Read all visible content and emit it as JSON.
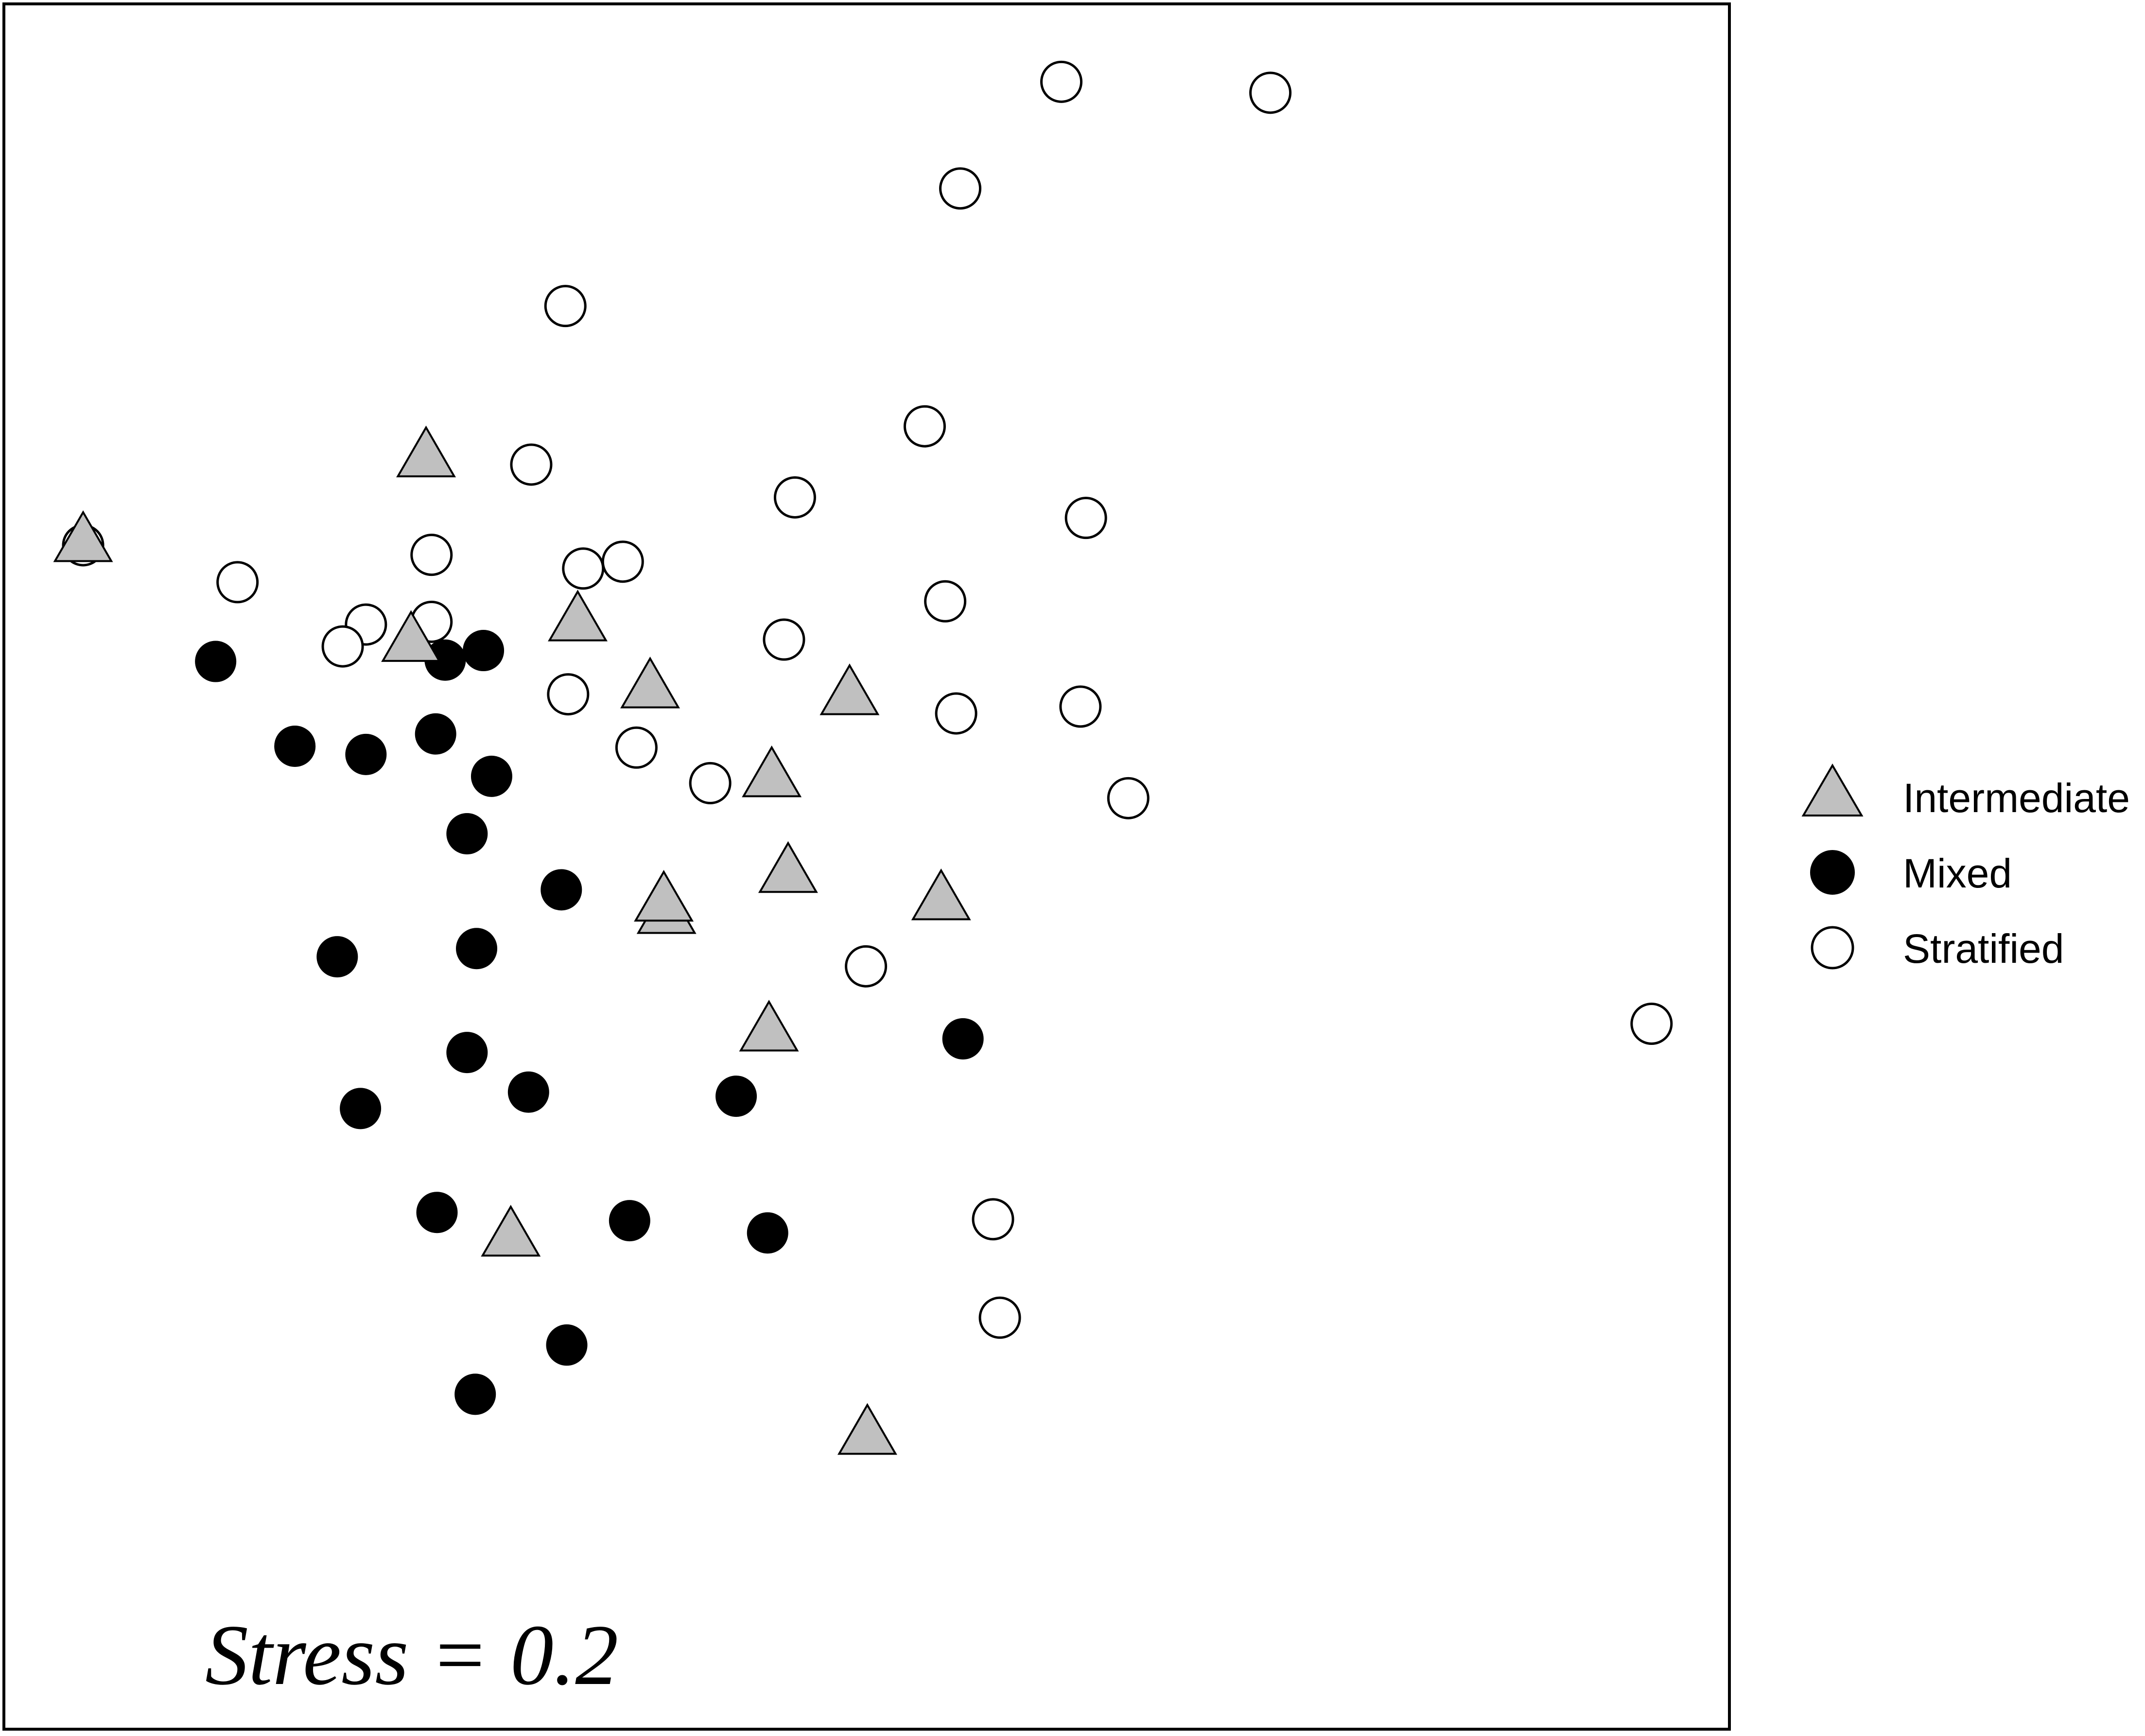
{
  "chart_data": {
    "type": "scatter",
    "title": "",
    "xlabel": "",
    "ylabel": "",
    "xlim": [
      0,
      1263
    ],
    "ylim": [
      0,
      1262
    ],
    "grid": false,
    "legend_position": "right",
    "annotation": "Stress = 0.2",
    "colors": {
      "frame": "#000000",
      "intermediate_fill": "#c0c0c0",
      "mixed_fill": "#000000",
      "stratified_fill": "#ffffff",
      "edge": "#000000"
    },
    "series": [
      {
        "name": "Intermediate",
        "marker": "triangle",
        "points": [
          {
            "x": 58,
            "y": 868
          },
          {
            "x": 309,
            "y": 930
          },
          {
            "x": 298,
            "y": 795
          },
          {
            "x": 420,
            "y": 810
          },
          {
            "x": 473,
            "y": 761
          },
          {
            "x": 619,
            "y": 756
          },
          {
            "x": 562,
            "y": 696
          },
          {
            "x": 574,
            "y": 626
          },
          {
            "x": 485,
            "y": 596
          },
          {
            "x": 483,
            "y": 605
          },
          {
            "x": 686,
            "y": 606
          },
          {
            "x": 560,
            "y": 510
          },
          {
            "x": 371,
            "y": 360
          },
          {
            "x": 632,
            "y": 215
          }
        ]
      },
      {
        "name": "Mixed",
        "marker": "circle-filled",
        "points": [
          {
            "x": 155,
            "y": 781
          },
          {
            "x": 323,
            "y": 782
          },
          {
            "x": 351,
            "y": 789
          },
          {
            "x": 213,
            "y": 719
          },
          {
            "x": 265,
            "y": 713
          },
          {
            "x": 316,
            "y": 728
          },
          {
            "x": 357,
            "y": 697
          },
          {
            "x": 339,
            "y": 655
          },
          {
            "x": 408,
            "y": 614
          },
          {
            "x": 244,
            "y": 565
          },
          {
            "x": 346,
            "y": 571
          },
          {
            "x": 339,
            "y": 495
          },
          {
            "x": 384,
            "y": 466
          },
          {
            "x": 261,
            "y": 454
          },
          {
            "x": 536,
            "y": 463
          },
          {
            "x": 702,
            "y": 505
          },
          {
            "x": 317,
            "y": 378
          },
          {
            "x": 458,
            "y": 372
          },
          {
            "x": 559,
            "y": 363
          },
          {
            "x": 412,
            "y": 281
          },
          {
            "x": 345,
            "y": 245
          }
        ]
      },
      {
        "name": "Stratified",
        "marker": "circle-open",
        "points": [
          {
            "x": 774,
            "y": 1205
          },
          {
            "x": 927,
            "y": 1197
          },
          {
            "x": 700,
            "y": 1127
          },
          {
            "x": 411,
            "y": 1041
          },
          {
            "x": 674,
            "y": 953
          },
          {
            "x": 386,
            "y": 925
          },
          {
            "x": 579,
            "y": 901
          },
          {
            "x": 792,
            "y": 886
          },
          {
            "x": 58,
            "y": 866
          },
          {
            "x": 313,
            "y": 859
          },
          {
            "x": 424,
            "y": 849
          },
          {
            "x": 453,
            "y": 854
          },
          {
            "x": 171,
            "y": 839
          },
          {
            "x": 689,
            "y": 825
          },
          {
            "x": 313,
            "y": 810
          },
          {
            "x": 265,
            "y": 808
          },
          {
            "x": 248,
            "y": 792
          },
          {
            "x": 571,
            "y": 797
          },
          {
            "x": 413,
            "y": 757
          },
          {
            "x": 697,
            "y": 743
          },
          {
            "x": 788,
            "y": 748
          },
          {
            "x": 463,
            "y": 718
          },
          {
            "x": 517,
            "y": 692
          },
          {
            "x": 823,
            "y": 681
          },
          {
            "x": 631,
            "y": 558
          },
          {
            "x": 1206,
            "y": 516
          },
          {
            "x": 724,
            "y": 373
          },
          {
            "x": 729,
            "y": 301
          }
        ]
      }
    ]
  }
}
